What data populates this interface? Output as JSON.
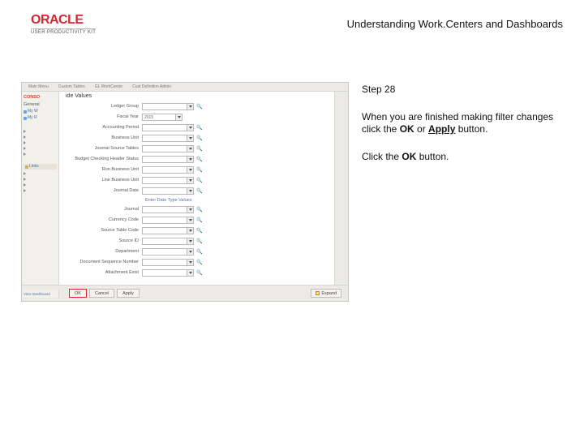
{
  "header": {
    "logo_text": "ORACLE",
    "logo_sub": "USER PRODUCTIVITY KIT",
    "title": "Understanding Work.Centers and Dashboards"
  },
  "instructions": {
    "step_label": "Step 28",
    "para1_a": "When you are finished making filter changes click the ",
    "para1_b": "OK",
    "para1_c": " or ",
    "para1_d": "Apply",
    "para1_e": " button.",
    "para2_a": "Click the ",
    "para2_b": "OK",
    "para2_c": " button."
  },
  "screenshot": {
    "background_color": "#f7f7f5",
    "border_color": "#c9c9c9",
    "topbar": {
      "items": [
        "Main Menu",
        "Custom Tables",
        "GL WorkCenter",
        "Cust Definition Admin"
      ]
    },
    "sidebar": {
      "head1": "CONSO",
      "head2": "General",
      "items": [
        "My W",
        "My R"
      ],
      "lower": [
        "Links",
        "",
        "",
        "",
        ""
      ]
    },
    "dialog": {
      "title": "ide Values",
      "fields": [
        {
          "label": "Ledger Group",
          "value": "",
          "type": "select-lookup"
        },
        {
          "label": "Fiscal Year",
          "value": "2015",
          "type": "select"
        },
        {
          "label": "Accounting Period",
          "value": "",
          "type": "select-lookup"
        },
        {
          "label": "Business Unit",
          "value": "",
          "type": "select-lookup"
        },
        {
          "label": "Journal Source Tables",
          "value": "",
          "type": "select-lookup"
        },
        {
          "label": "Budget Checking Header Status",
          "value": "",
          "type": "select-lookup"
        },
        {
          "label": "Run Business Unit",
          "value": "",
          "type": "select-lookup"
        },
        {
          "label": "Line Business Unit",
          "value": "",
          "type": "select-lookup"
        },
        {
          "label": "Journal Date",
          "value": "",
          "type": "select-lookup"
        },
        {
          "label": "",
          "value": "Enter Date Type Values",
          "type": "link"
        },
        {
          "label": "Journal",
          "value": "",
          "type": "select-lookup"
        },
        {
          "label": "Currency Code",
          "value": "",
          "type": "select-lookup"
        },
        {
          "label": "Source Table Code",
          "value": "",
          "type": "select-lookup"
        },
        {
          "label": "Source ID",
          "value": "",
          "type": "select-lookup"
        },
        {
          "label": "Department",
          "value": "",
          "type": "select-lookup"
        },
        {
          "label": "Document Sequence Number",
          "value": "",
          "type": "select-lookup"
        },
        {
          "label": "Attachment Exist",
          "value": "",
          "type": "select-lookup"
        }
      ],
      "buttons": {
        "ok": "OK",
        "cancel": "Cancel",
        "apply": "Apply",
        "expand": "Expand"
      },
      "highlight_color": "#d02a2a"
    },
    "footer_label": "View Dashboard"
  }
}
